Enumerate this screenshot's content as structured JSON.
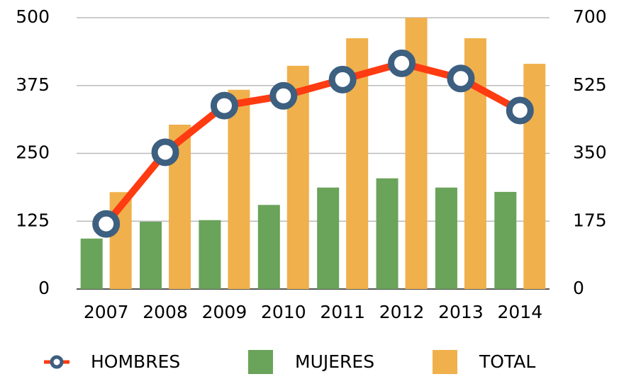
{
  "chart_data": {
    "type": "bar_line",
    "categories": [
      "2007",
      "2008",
      "2009",
      "2010",
      "2011",
      "2012",
      "2013",
      "2014"
    ],
    "series": [
      {
        "name": "HOMBRES",
        "type": "line",
        "color": "#ff3b12",
        "marker_color": "#3d5f80",
        "values": [
          120,
          252,
          338,
          356,
          386,
          416,
          388,
          329
        ]
      },
      {
        "name": "MUJERES",
        "type": "bar",
        "color": "#6aa35a",
        "values": [
          93,
          124,
          127,
          155,
          187,
          204,
          187,
          179
        ]
      },
      {
        "name": "TOTAL",
        "type": "bar",
        "color": "#f0b04c",
        "axis": "y2",
        "values": [
          250,
          424,
          514,
          576,
          647,
          700,
          647,
          581
        ]
      }
    ],
    "ylim": [
      0,
      500
    ],
    "yticks": [
      0,
      125,
      250,
      375,
      500
    ],
    "y2lim": [
      0,
      700
    ],
    "y2ticks": [
      0,
      175,
      350,
      525,
      700
    ],
    "grid": true,
    "legend": "bottom"
  }
}
